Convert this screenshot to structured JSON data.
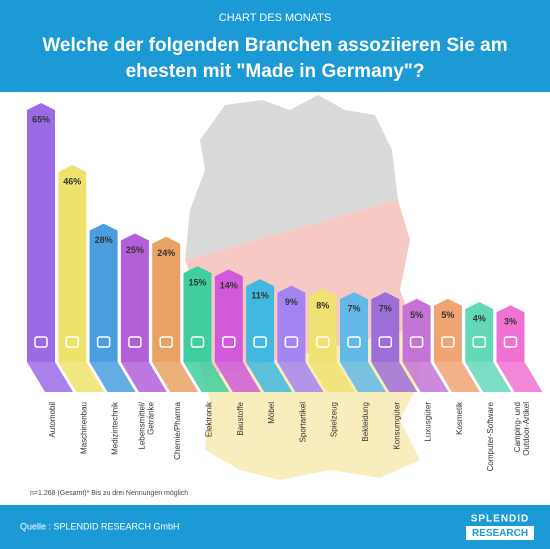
{
  "header": {
    "kicker": "CHART DES MONATS",
    "title_lines": [
      "Welche der folgenden Branchen assoziieren Sie am",
      "ehesten mit \"Made in Germany\"?"
    ]
  },
  "chart_data": {
    "type": "bar",
    "categories": [
      "Automobil",
      "Maschinenbau",
      "Medizintechnik",
      "Lebensmittel/\nGetränke",
      "Chemie/Pharma",
      "Elektronik",
      "Baustoffe",
      "Möbel",
      "Sportartikel",
      "Spielzeug",
      "Bekleidung",
      "Konsumgüter",
      "Luxusgüter",
      "Kosmetik",
      "Computer-Software",
      "Camping- und\nOutdoor-Artikel"
    ],
    "values": [
      65,
      46,
      28,
      25,
      24,
      15,
      14,
      11,
      9,
      8,
      7,
      7,
      5,
      5,
      4,
      3
    ],
    "value_labels": [
      "65%",
      "46%",
      "28%",
      "25%",
      "24%",
      "15%",
      "14%",
      "11%",
      "9%",
      "8%",
      "7%",
      "7%",
      "5%",
      "5%",
      "4%",
      "3%"
    ],
    "colors": [
      "#9b6be6",
      "#ede36c",
      "#4a9ee0",
      "#b25fd8",
      "#e9a263",
      "#3fcf9f",
      "#d05ad8",
      "#42b8e0",
      "#a484f0",
      "#f0e272",
      "#62b9e8",
      "#9d6ed8",
      "#c474d4",
      "#f0a474",
      "#62d8b8",
      "#f072d2"
    ],
    "ylim": [
      0,
      65
    ]
  },
  "footnote": "n=1.268 (Gesamt)* Bis zu drei Nennungen möglich",
  "footer": {
    "source": "Quelle : SPLENDID RESEARCH GmbH",
    "logo": [
      "SPLENDID",
      "RESEARCH"
    ]
  }
}
